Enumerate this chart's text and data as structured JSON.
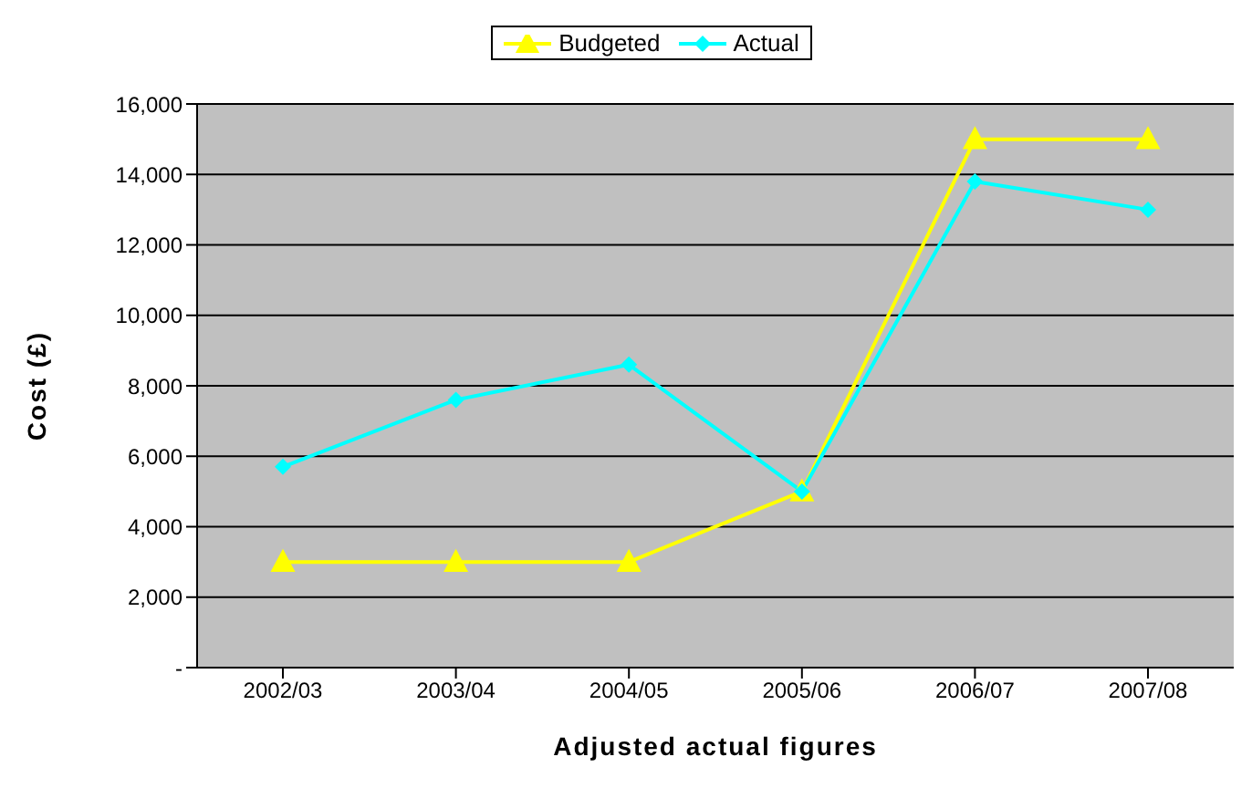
{
  "chart_data": {
    "type": "line",
    "xlabel": "Adjusted actual  figures",
    "ylabel": "Cost (£)",
    "categories": [
      "2002/03",
      "2003/04",
      "2004/05",
      "2005/06",
      "2006/07",
      "2007/08"
    ],
    "series": [
      {
        "name": "Budgeted",
        "color": "#ffff00",
        "marker": "triangle",
        "values": [
          3000,
          3000,
          3000,
          5000,
          15000,
          15000
        ]
      },
      {
        "name": "Actual",
        "color": "#00ffff",
        "marker": "diamond",
        "values": [
          5700,
          7600,
          8600,
          5000,
          13800,
          13000
        ]
      }
    ],
    "ylim": [
      0,
      16000
    ],
    "yticks": [
      {
        "value": 0,
        "label": "-"
      },
      {
        "value": 2000,
        "label": "2,000"
      },
      {
        "value": 4000,
        "label": "4,000"
      },
      {
        "value": 6000,
        "label": "6,000"
      },
      {
        "value": 8000,
        "label": "8,000"
      },
      {
        "value": 10000,
        "label": "10,000"
      },
      {
        "value": 12000,
        "label": "12,000"
      },
      {
        "value": 14000,
        "label": "14,000"
      },
      {
        "value": 16000,
        "label": "16,000"
      }
    ],
    "grid": "y",
    "legend": "top"
  }
}
